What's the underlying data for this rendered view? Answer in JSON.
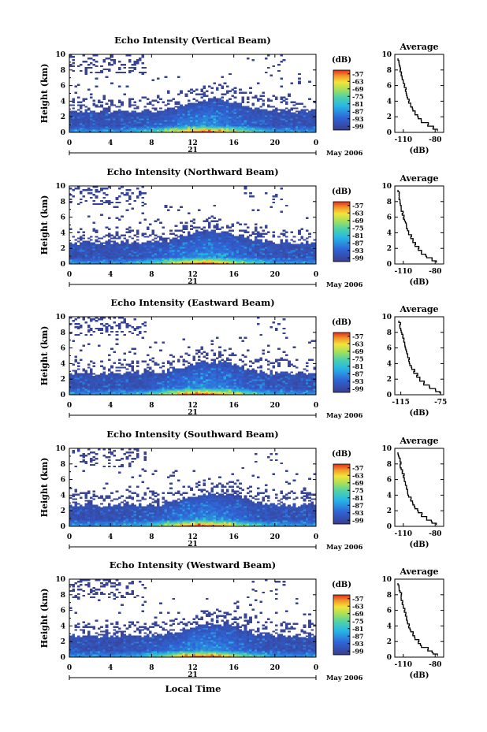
{
  "figure": {
    "bottom_xlabel": "Local Time",
    "date_label": "May 2006",
    "day_label": "21",
    "avg_title": "Average",
    "avg_xlabel": "(dB)",
    "colorbar_label": "(dB)"
  },
  "chart_data": [
    {
      "type": "heatmap",
      "title": "Echo Intensity (Vertical Beam)",
      "ylabel": "Height (km)",
      "xlabel": "Local Time",
      "x_ticks": [
        "0",
        "4",
        "8",
        "12",
        "16",
        "20",
        "0"
      ],
      "y_ticks": [
        "0",
        "2",
        "4",
        "6",
        "8",
        "10"
      ],
      "xlim": [
        0,
        24
      ],
      "ylim": [
        0,
        10
      ],
      "colorbar": {
        "label": "(dB)",
        "ticks": [
          -57,
          -63,
          -69,
          -75,
          -81,
          -87,
          -93,
          -99
        ],
        "range": [
          -102,
          -54
        ]
      },
      "average_profile": {
        "title": "Average",
        "xlabel": "(dB)",
        "x_ticks": [
          "-110",
          "-80"
        ],
        "xlim": [
          -118,
          -72
        ],
        "y_ticks": [
          "0",
          "2",
          "4",
          "6",
          "8",
          "10"
        ],
        "height_km": [
          0.2,
          0.6,
          1.0,
          1.5,
          2.0,
          2.5,
          3.0,
          3.5,
          4.0,
          4.5,
          5.0,
          5.5,
          6.0,
          6.5,
          7.0,
          7.5,
          8.0,
          8.5,
          9.0,
          9.5
        ],
        "value_db": [
          -78,
          -82,
          -87,
          -93,
          -96,
          -99,
          -101,
          -103,
          -105,
          -106,
          -107,
          -108,
          -109,
          -110,
          -111,
          -112,
          -113,
          -113,
          -114,
          -115
        ]
      }
    },
    {
      "type": "heatmap",
      "title": "Echo Intensity (Northward Beam)",
      "ylabel": "Height (km)",
      "xlabel": "Local Time",
      "x_ticks": [
        "0",
        "4",
        "8",
        "12",
        "16",
        "20",
        "0"
      ],
      "y_ticks": [
        "0",
        "2",
        "4",
        "6",
        "8",
        "10"
      ],
      "xlim": [
        0,
        24
      ],
      "ylim": [
        0,
        10
      ],
      "colorbar": {
        "label": "(dB)",
        "ticks": [
          -57,
          -63,
          -69,
          -75,
          -81,
          -87,
          -93,
          -99
        ],
        "range": [
          -102,
          -54
        ]
      },
      "average_profile": {
        "title": "Average",
        "xlabel": "(dB)",
        "x_ticks": [
          "-110",
          "-80"
        ],
        "xlim": [
          -118,
          -72
        ],
        "y_ticks": [
          "0",
          "2",
          "4",
          "6",
          "8",
          "10"
        ],
        "height_km": [
          0.2,
          0.6,
          1.0,
          1.5,
          2.0,
          2.5,
          3.0,
          3.5,
          4.0,
          4.5,
          5.0,
          5.5,
          6.0,
          6.5,
          7.0,
          7.5,
          8.0,
          8.5,
          9.0,
          9.5
        ],
        "value_db": [
          -79,
          -83,
          -88,
          -93,
          -96,
          -99,
          -101,
          -103,
          -105,
          -106,
          -107,
          -108,
          -110,
          -111,
          -112,
          -112,
          -113,
          -114,
          -114,
          -115
        ]
      }
    },
    {
      "type": "heatmap",
      "title": "Echo Intensity (Eastward Beam)",
      "ylabel": "Height (km)",
      "xlabel": "Local Time",
      "x_ticks": [
        "0",
        "4",
        "8",
        "12",
        "16",
        "20",
        "0"
      ],
      "y_ticks": [
        "0",
        "2",
        "4",
        "6",
        "8",
        "10"
      ],
      "xlim": [
        0,
        24
      ],
      "ylim": [
        0,
        10
      ],
      "colorbar": {
        "label": "(dB)",
        "ticks": [
          -57,
          -63,
          -69,
          -75,
          -81,
          -87,
          -93,
          -99
        ],
        "range": [
          -102,
          -54
        ]
      },
      "average_profile": {
        "title": "Average",
        "xlabel": "(dB)",
        "x_ticks": [
          "-115",
          "-75"
        ],
        "xlim": [
          -121,
          -72
        ],
        "y_ticks": [
          "0",
          "2",
          "4",
          "6",
          "8",
          "10"
        ],
        "height_km": [
          0.2,
          0.6,
          1.0,
          1.5,
          2.0,
          2.5,
          3.0,
          3.5,
          4.0,
          4.5,
          5.0,
          5.5,
          6.0,
          6.5,
          7.0,
          7.5,
          8.0,
          8.5,
          9.0,
          9.5
        ],
        "value_db": [
          -76,
          -80,
          -86,
          -92,
          -96,
          -99,
          -102,
          -104,
          -106,
          -107,
          -108,
          -109,
          -110,
          -111,
          -112,
          -113,
          -114,
          -115,
          -116,
          -117
        ]
      }
    },
    {
      "type": "heatmap",
      "title": "Echo Intensity (Southward Beam)",
      "ylabel": "Height (km)",
      "xlabel": "Local Time",
      "x_ticks": [
        "0",
        "4",
        "8",
        "12",
        "16",
        "20",
        "0"
      ],
      "y_ticks": [
        "0",
        "2",
        "4",
        "6",
        "8",
        "10"
      ],
      "xlim": [
        0,
        24
      ],
      "ylim": [
        0,
        10
      ],
      "colorbar": {
        "label": "(dB)",
        "ticks": [
          -57,
          -63,
          -69,
          -75,
          -81,
          -87,
          -93,
          -99
        ],
        "range": [
          -102,
          -54
        ]
      },
      "average_profile": {
        "title": "Average",
        "xlabel": "(dB)",
        "x_ticks": [
          "-110",
          "-80"
        ],
        "xlim": [
          -118,
          -72
        ],
        "y_ticks": [
          "0",
          "2",
          "4",
          "6",
          "8",
          "10"
        ],
        "height_km": [
          0.2,
          0.6,
          1.0,
          1.5,
          2.0,
          2.5,
          3.0,
          3.5,
          4.0,
          4.5,
          5.0,
          5.5,
          6.0,
          6.5,
          7.0,
          7.5,
          8.0,
          8.5,
          9.0,
          9.5
        ],
        "value_db": [
          -79,
          -83,
          -88,
          -93,
          -96,
          -99,
          -101,
          -103,
          -105,
          -106,
          -107,
          -108,
          -109,
          -110,
          -111,
          -112,
          -113,
          -113,
          -114,
          -115
        ]
      }
    },
    {
      "type": "heatmap",
      "title": "Echo Intensity (Westward Beam)",
      "ylabel": "Height (km)",
      "xlabel": "Local Time",
      "x_ticks": [
        "0",
        "4",
        "8",
        "12",
        "16",
        "20",
        "0"
      ],
      "y_ticks": [
        "0",
        "2",
        "4",
        "6",
        "8",
        "10"
      ],
      "xlim": [
        0,
        24
      ],
      "ylim": [
        0,
        10
      ],
      "colorbar": {
        "label": "(dB)",
        "ticks": [
          -57,
          -63,
          -69,
          -75,
          -81,
          -87,
          -93,
          -99
        ],
        "range": [
          -102,
          -54
        ]
      },
      "average_profile": {
        "title": "Average",
        "xlabel": "(dB)",
        "x_ticks": [
          "-110",
          "-80"
        ],
        "xlim": [
          -118,
          -72
        ],
        "y_ticks": [
          "0",
          "2",
          "4",
          "6",
          "8",
          "10"
        ],
        "height_km": [
          0.2,
          0.6,
          1.0,
          1.5,
          2.0,
          2.5,
          3.0,
          3.5,
          4.0,
          4.5,
          5.0,
          5.5,
          6.0,
          6.5,
          7.0,
          7.5,
          8.0,
          8.5,
          9.0,
          9.5
        ],
        "value_db": [
          -78,
          -82,
          -87,
          -93,
          -96,
          -99,
          -101,
          -103,
          -105,
          -106,
          -107,
          -108,
          -109,
          -110,
          -111,
          -112,
          -112,
          -113,
          -114,
          -115
        ]
      }
    }
  ]
}
